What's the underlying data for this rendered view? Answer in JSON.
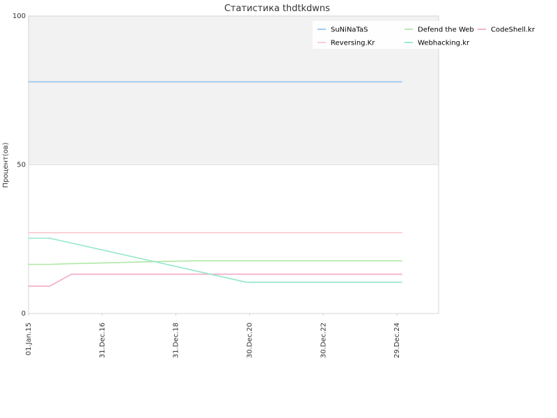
{
  "chart_data": {
    "type": "line",
    "title": "Статистика thdtkdwns",
    "xlabel": "",
    "ylabel": "Процент(ов)",
    "ylim": [
      0,
      100
    ],
    "yticks": [
      0,
      50,
      100
    ],
    "xlim": [
      "2015-01-01",
      "2026-02-15"
    ],
    "xticks": [
      {
        "date": "2015-01-01",
        "label": "01.Jan.15"
      },
      {
        "date": "2016-12-31",
        "label": "31.Dec.16"
      },
      {
        "date": "2018-12-31",
        "label": "31.Dec.18"
      },
      {
        "date": "2020-12-30",
        "label": "30.Dec.20"
      },
      {
        "date": "2022-12-30",
        "label": "30.Dec.22"
      },
      {
        "date": "2024-12-29",
        "label": "29.Dec.24"
      }
    ],
    "shaded_band": {
      "y_from": 50,
      "y_to": 100,
      "color": "#f2f2f2"
    },
    "grid": true,
    "legend_position": "top-right",
    "series": [
      {
        "name": "SuNiNaTaS",
        "color": "#99c2ee",
        "points": [
          [
            "2015-01-01",
            77.9
          ],
          [
            "2025-02-15",
            77.9
          ]
        ]
      },
      {
        "name": "Defend the Web",
        "color": "#aee8a4",
        "points": [
          [
            "2015-01-01",
            16.5
          ],
          [
            "2015-08-01",
            16.5
          ],
          [
            "2016-01-01",
            16.7
          ],
          [
            "2017-01-01",
            17.0
          ],
          [
            "2018-01-01",
            17.3
          ],
          [
            "2019-06-01",
            17.7
          ],
          [
            "2025-02-15",
            17.7
          ]
        ]
      },
      {
        "name": "CodeShell.kr",
        "color": "#f4a8c8",
        "points": [
          [
            "2015-01-01",
            9.2
          ],
          [
            "2015-08-01",
            9.2
          ],
          [
            "2016-03-01",
            13.2
          ],
          [
            "2025-02-15",
            13.2
          ]
        ]
      },
      {
        "name": "Reversing.Kr",
        "color": "#f8c8cc",
        "points": [
          [
            "2015-01-01",
            27.2
          ],
          [
            "2025-02-15",
            27.2
          ]
        ]
      },
      {
        "name": "Webhacking.kr",
        "color": "#94e8c8",
        "points": [
          [
            "2015-01-01",
            25.3
          ],
          [
            "2015-08-01",
            25.3
          ],
          [
            "2020-12-01",
            10.5
          ],
          [
            "2025-02-15",
            10.5
          ]
        ]
      }
    ]
  }
}
